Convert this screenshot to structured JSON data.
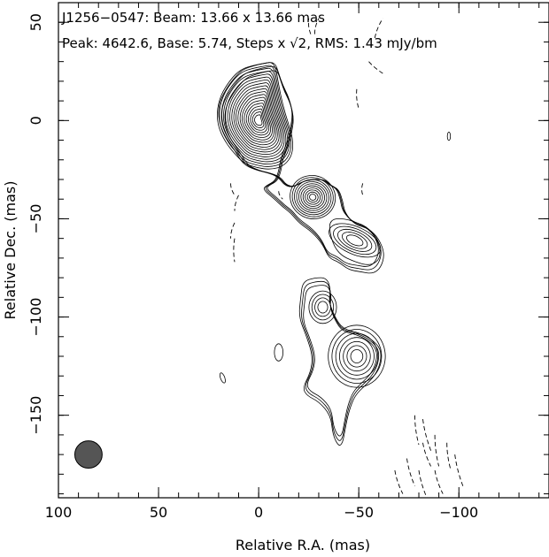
{
  "chart_data": {
    "type": "contour",
    "source": "J1256−0547",
    "title_line1": "J1256−0547: Beam: 13.66 x 13.66 mas",
    "title_line2_prefix": "Peak: 4642.6, Base: 5.74, Steps x ",
    "title_line2_sqrt": "√2",
    "title_line2_suffix": ", RMS: 1.43 mJy/bm",
    "xlabel": "Relative R.A. (mas)",
    "ylabel": "Relative Dec. (mas)",
    "xlim": [
      100,
      -145
    ],
    "ylim": [
      -192,
      60
    ],
    "xticks": [
      100,
      50,
      0,
      -50,
      -100
    ],
    "yticks": [
      50,
      0,
      -50,
      -100,
      -150
    ],
    "xtick_labels": [
      "100",
      "50",
      "0",
      "−50",
      "−100"
    ],
    "ytick_labels": [
      "50",
      "0",
      "−50",
      "−100",
      "−150"
    ],
    "beam": {
      "x": 85,
      "y": -170,
      "diameter_mas": 13.66,
      "color": "#555555"
    },
    "components": [
      {
        "name": "core",
        "x": 0,
        "y": 0,
        "levels": 19
      },
      {
        "name": "jet-knot-1",
        "x": -27,
        "y": -39,
        "levels": 10
      },
      {
        "name": "jet-knot-2",
        "x": -48,
        "y": -61,
        "levels": 6
      },
      {
        "name": "jet-knot-3",
        "x": -32,
        "y": -95,
        "levels": 4
      },
      {
        "name": "jet-knot-4",
        "x": -49,
        "y": -120,
        "levels": 7
      }
    ]
  }
}
